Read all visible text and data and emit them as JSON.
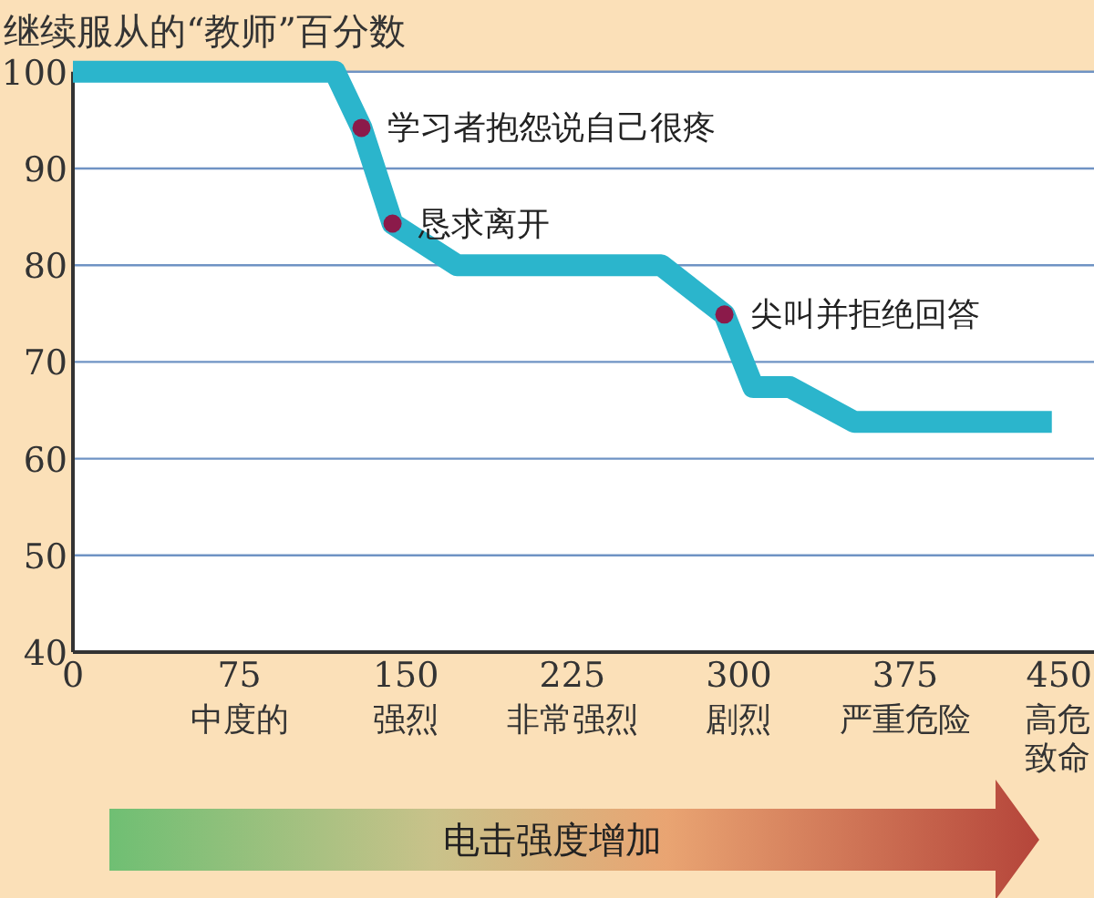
{
  "chart_data": {
    "type": "line",
    "ylabel": "继续服从的“教师”百分数",
    "x": [
      0,
      118,
      130,
      144,
      173,
      265,
      293.5,
      306.5,
      323,
      352,
      441
    ],
    "series": [
      {
        "color": "#2bb5cc",
        "values": [
          100,
          100,
          94.2,
          84.3,
          80,
          80,
          74.9,
          67.4,
          67.4,
          63.8,
          63.8
        ]
      }
    ],
    "xlim": [
      0,
      460
    ],
    "ylim": [
      40,
      100
    ],
    "xticks": [
      0,
      75,
      150,
      225,
      300,
      375,
      450
    ],
    "yticks": [
      40,
      50,
      60,
      70,
      80,
      90,
      100
    ],
    "grid": "y",
    "marker": "none",
    "line_style": "solid",
    "annotations": [
      {
        "text": "学习者抱怨说自己很疼",
        "x": 130,
        "y": 94.2
      },
      {
        "text": "恳求离开",
        "x": 144,
        "y": 84.3
      },
      {
        "text": "尖叫并拒绝回答",
        "x": 293.5,
        "y": 74.9
      },
      "中度的",
      "强烈",
      "非常强烈",
      "剧烈",
      "严重危险",
      "高危致命",
      "电击强度增加"
    ]
  }
}
